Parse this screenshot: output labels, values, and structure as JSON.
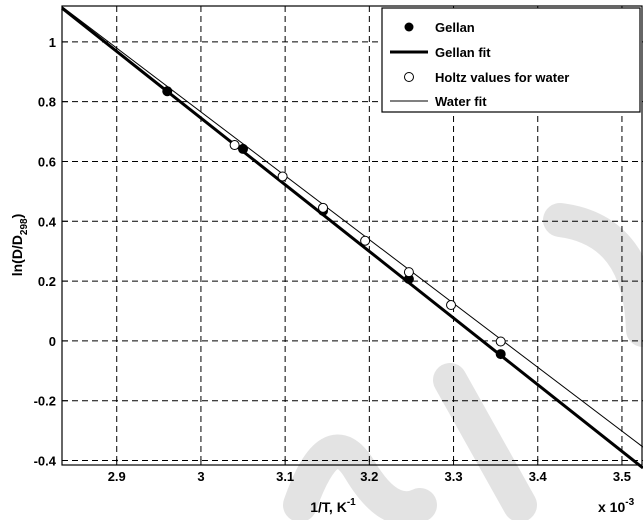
{
  "chart_data": {
    "type": "scatter",
    "xlabel": "1/T, K",
    "xlabel_sup": "-1",
    "ylabel": "ln(D/D",
    "ylabel_sub": "298",
    "ylabel_end": ")",
    "x_multiplier": "x 10",
    "x_multiplier_sup": "-3",
    "xlim": [
      2.835,
      3.525
    ],
    "ylim": [
      -0.415,
      1.12
    ],
    "xticks": [
      2.9,
      3.0,
      3.1,
      3.2,
      3.3,
      3.4,
      3.5
    ],
    "xtick_labels": [
      "2.9",
      "3",
      "3.1",
      "3.2",
      "3.3",
      "3.4",
      "3.5"
    ],
    "yticks": [
      -0.4,
      -0.2,
      0,
      0.2,
      0.4,
      0.6,
      0.8,
      1.0
    ],
    "ytick_labels": [
      "-0.4",
      "-0.2",
      "0",
      "0.2",
      "0.4",
      "0.6",
      "0.8",
      "1"
    ],
    "grid": true,
    "legend_position": "top-right",
    "series": [
      {
        "name": "Gellan",
        "kind": "points",
        "marker": "filled-circle",
        "x": [
          2.96,
          3.05,
          3.145,
          3.247,
          3.356
        ],
        "y": [
          0.835,
          0.642,
          0.435,
          0.207,
          -0.044
        ]
      },
      {
        "name": "Gellan fit",
        "kind": "line",
        "line_width": "thick",
        "x": [
          2.835,
          3.525
        ],
        "y": [
          1.113,
          -0.425
        ]
      },
      {
        "name": "Holtz values for water",
        "kind": "points",
        "marker": "open-circle",
        "x": [
          3.04,
          3.097,
          3.145,
          3.195,
          3.247,
          3.297,
          3.356
        ],
        "y": [
          0.655,
          0.55,
          0.445,
          0.335,
          0.23,
          0.12,
          -0.002
        ]
      },
      {
        "name": "Water fit",
        "kind": "line",
        "line_width": "thin",
        "x": [
          2.835,
          3.525
        ],
        "y": [
          1.118,
          -0.355
        ]
      }
    ]
  }
}
